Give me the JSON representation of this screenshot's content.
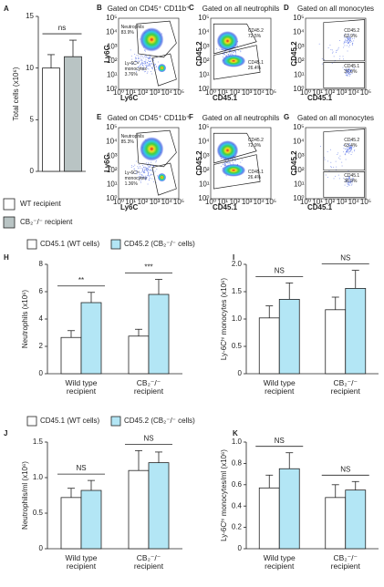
{
  "flow_ticks": [
    "10⁰",
    "10¹",
    "10²",
    "10³",
    "10⁴",
    "10⁵"
  ],
  "flow_panels": [
    {
      "panel": "B",
      "title": "Gated on CD45⁺ CD11b⁺",
      "xlabel": "Ly6C",
      "ylabel": "Ly6G",
      "gates": [
        {
          "name": "Neutrophils",
          "pct": "83.9%"
        },
        {
          "name": "Ly-6Cʰⁱ monocytes",
          "pct": "3.76%"
        }
      ]
    },
    {
      "panel": "C",
      "title": "Gated on all neutrophils",
      "xlabel": "CD45.1",
      "ylabel": "CD45.2",
      "gates": [
        {
          "name": "CD45.2",
          "pct": "72.5%"
        },
        {
          "name": "CD45.1",
          "pct": "26.4%"
        }
      ]
    },
    {
      "panel": "D",
      "title": "Gated on all monocytes",
      "xlabel": "CD45.1",
      "ylabel": "CD45.2",
      "gates": [
        {
          "name": "CD45.2",
          "pct": "62.9%"
        },
        {
          "name": "CD45.1",
          "pct": "37.0%"
        }
      ]
    },
    {
      "panel": "E",
      "title": "Gated on CD45⁺ CD11b⁺",
      "xlabel": "Ly6C",
      "ylabel": "Ly6G",
      "gates": [
        {
          "name": "Neutrophils",
          "pct": "85.3%"
        },
        {
          "name": "Ly-6Cʰⁱ monocytes",
          "pct": "1.36%"
        }
      ]
    },
    {
      "panel": "F",
      "title": "Gated on all neutrophils",
      "xlabel": "CD45.1",
      "ylabel": "CD45.2",
      "gates": [
        {
          "name": "CD45.2",
          "pct": "72.9%"
        },
        {
          "name": "CD45.1",
          "pct": "26.4%"
        }
      ]
    },
    {
      "panel": "G",
      "title": "Gated on all monocytes",
      "xlabel": "CD45.1",
      "ylabel": "CD45.2",
      "gates": [
        {
          "name": "CD45.2",
          "pct": "63.4%"
        },
        {
          "name": "CD45.1",
          "pct": "36.9%"
        }
      ]
    }
  ],
  "chart_data": [
    {
      "panel": "A",
      "type": "bar",
      "ylabel": "Total cells (x10⁶)",
      "categories": [
        null
      ],
      "ylim": [
        0,
        15
      ],
      "yticks": [
        0,
        5,
        10,
        15
      ],
      "series": [
        {
          "name": "WT recipient",
          "color": "#ffffff",
          "values": [
            10.0
          ],
          "errors": [
            1.3
          ]
        },
        {
          "name": "CB₂⁻/⁻ recipient",
          "color": "#b9c4c4",
          "values": [
            11.1
          ],
          "errors": [
            1.6
          ]
        }
      ],
      "annotations": [
        "ns"
      ]
    },
    {
      "panel": "H",
      "type": "bar",
      "ylabel": "Neutrophils (x10⁶)",
      "categories": [
        "Wild type recipient",
        "CB₂⁻/⁻ recipient"
      ],
      "ylim": [
        0,
        8
      ],
      "yticks": [
        0,
        2,
        4,
        6,
        8
      ],
      "series": [
        {
          "name": "CD45.1 (WT cells)",
          "color": "#ffffff",
          "values": [
            2.65,
            2.75
          ],
          "errors": [
            0.5,
            0.5
          ]
        },
        {
          "name": "CD45.2 (CB₂⁻/⁻ cells)",
          "color": "#b3e6f5",
          "values": [
            5.2,
            5.8
          ],
          "errors": [
            0.75,
            1.1
          ]
        }
      ],
      "annotations": [
        "**",
        "***"
      ]
    },
    {
      "panel": "I",
      "type": "bar",
      "ylabel": "Ly-6Cʰⁱ monocytes (x10⁶)",
      "categories": [
        "Wild type recipient",
        "CB₂⁻/⁻ recipient"
      ],
      "ylim": [
        0,
        2
      ],
      "yticks": [
        0,
        0.5,
        {
          "value": 1,
          "label": "1.0"
        },
        1.5,
        {
          "value": 2,
          "label": "2.0"
        }
      ],
      "series": [
        {
          "color": "#ffffff",
          "values": [
            1.02,
            1.17
          ],
          "errors": [
            0.22,
            0.23
          ]
        },
        {
          "color": "#b3e6f5",
          "values": [
            1.36,
            1.56
          ],
          "errors": [
            0.3,
            0.33
          ]
        }
      ],
      "annotations": [
        "NS",
        "NS"
      ]
    },
    {
      "panel": "J",
      "type": "bar",
      "ylabel": "Neutrophils/ml (x10⁶)",
      "categories": [
        "Wild type recipient",
        "CB₂⁻/⁻ recipient"
      ],
      "ylim": [
        0,
        1.5
      ],
      "yticks": [
        0,
        0.5,
        {
          "value": 1,
          "label": "1.0"
        },
        1.5
      ],
      "series": [
        {
          "name": "CD45.1 (WT cells)",
          "color": "#ffffff",
          "values": [
            0.72,
            1.1
          ],
          "errors": [
            0.13,
            0.28
          ]
        },
        {
          "name": "CD45.2 (CB₂⁻/⁻ cells)",
          "color": "#b3e6f5",
          "values": [
            0.82,
            1.21
          ],
          "errors": [
            0.14,
            0.15
          ]
        }
      ],
      "annotations": [
        "NS",
        "NS"
      ]
    },
    {
      "panel": "K",
      "type": "bar",
      "ylabel": "Ly-6Cʰⁱ monocytes/ml (x10⁶)",
      "categories": [
        "Wild type recipient",
        "CB₂⁻/⁻ recipient"
      ],
      "ylim": [
        0,
        1
      ],
      "yticks": [
        0,
        0.2,
        0.4,
        0.6,
        0.8,
        {
          "value": 1,
          "label": "1.0"
        }
      ],
      "series": [
        {
          "color": "#ffffff",
          "values": [
            0.57,
            0.48
          ],
          "errors": [
            0.12,
            0.12
          ]
        },
        {
          "color": "#b3e6f5",
          "values": [
            0.75,
            0.55
          ],
          "errors": [
            0.15,
            0.08
          ]
        }
      ],
      "annotations": [
        "NS",
        "NS"
      ]
    }
  ]
}
